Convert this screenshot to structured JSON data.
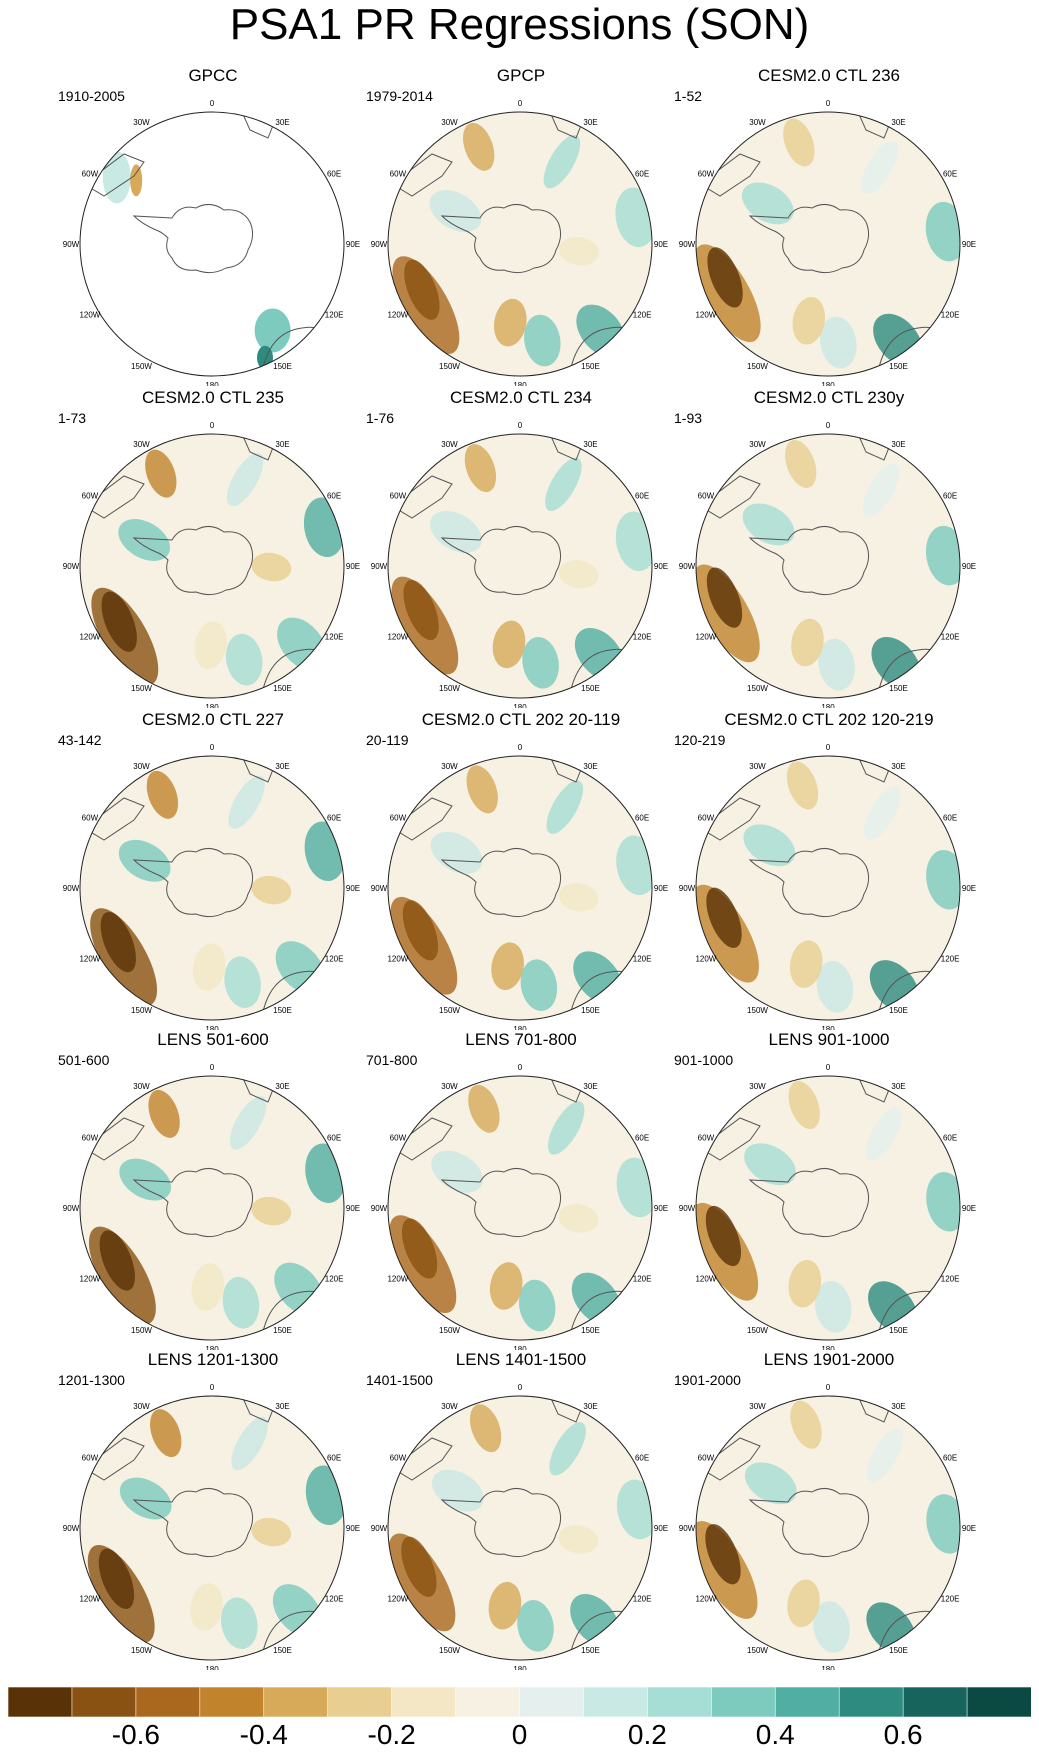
{
  "title": "PSA1 PR Regressions (SON)",
  "longitude_labels": [
    "0",
    "30E",
    "60E",
    "90E",
    "120E",
    "150E",
    "180",
    "150W",
    "120W",
    "90W",
    "60W",
    "30W"
  ],
  "chart_data": {
    "type": "polar contour map",
    "projection": "south-polar stereographic",
    "grid": false,
    "colorbar": {
      "ticks": [
        "-0.6",
        "-0.4",
        "-0.2",
        "0",
        "0.2",
        "0.4",
        "0.6"
      ],
      "colors": [
        "#5a3208",
        "#8a5212",
        "#a9681d",
        "#c2832d",
        "#d7aa5a",
        "#e8cf91",
        "#f3e7c6",
        "#f6f1e2",
        "#e5f0ee",
        "#c9e9e4",
        "#a6ddd4",
        "#7dcbbf",
        "#50aea2",
        "#2d8b80",
        "#16645b",
        "#0b4a42"
      ]
    },
    "panels": [
      {
        "title": "GPCC",
        "period": "1910-2005"
      },
      {
        "title": "GPCP",
        "period": "1979-2014"
      },
      {
        "title": "CESM2.0 CTL 236",
        "period": "1-52"
      },
      {
        "title": "CESM2.0 CTL 235",
        "period": "1-73"
      },
      {
        "title": "CESM2.0 CTL 234",
        "period": "1-76"
      },
      {
        "title": "CESM2.0 CTL 230y",
        "period": "1-93"
      },
      {
        "title": "CESM2.0 CTL 227",
        "period": "43-142"
      },
      {
        "title": "CESM2.0 CTL 202 20-119",
        "period": "20-119"
      },
      {
        "title": "CESM2.0 CTL 202 120-219",
        "period": "120-219"
      },
      {
        "title": "LENS 501-600",
        "period": "501-600"
      },
      {
        "title": "LENS 701-800",
        "period": "701-800"
      },
      {
        "title": "LENS 901-1000",
        "period": "901-1000"
      },
      {
        "title": "LENS 1201-1300",
        "period": "1201-1300"
      },
      {
        "title": "LENS 1401-1500",
        "period": "1401-1500"
      },
      {
        "title": "LENS 1901-2000",
        "period": "1901-2000"
      }
    ]
  }
}
